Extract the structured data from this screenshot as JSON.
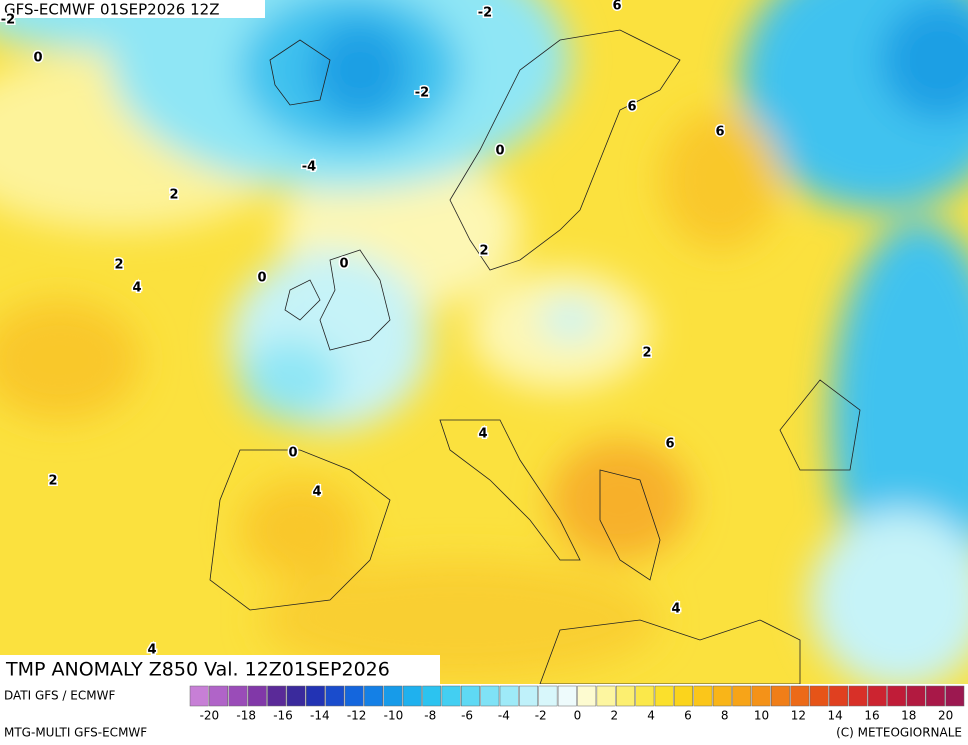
{
  "header": {
    "title": "GFS-ECMWF 01SEP2026 12Z"
  },
  "map": {
    "contour_labels": [
      0,
      -2,
      -2,
      -2,
      -4,
      6,
      6,
      6,
      0,
      2,
      2,
      2,
      4,
      0,
      0,
      2,
      4,
      6,
      0,
      2,
      4,
      4,
      4
    ]
  },
  "footer": {
    "title": "TMP ANOMALY Z850 Val. 12Z01SEP2026",
    "source": "DATI GFS / ECMWF",
    "model": "MTG-MULTI GFS-ECMWF",
    "copyright": "(C) METEOGIORNALE"
  },
  "colorbar": {
    "labels": [
      -20,
      -18,
      -16,
      -14,
      -12,
      -10,
      -8,
      -6,
      -4,
      -2,
      0,
      2,
      4,
      6,
      8,
      10,
      12,
      14,
      16,
      18,
      20
    ]
  }
}
